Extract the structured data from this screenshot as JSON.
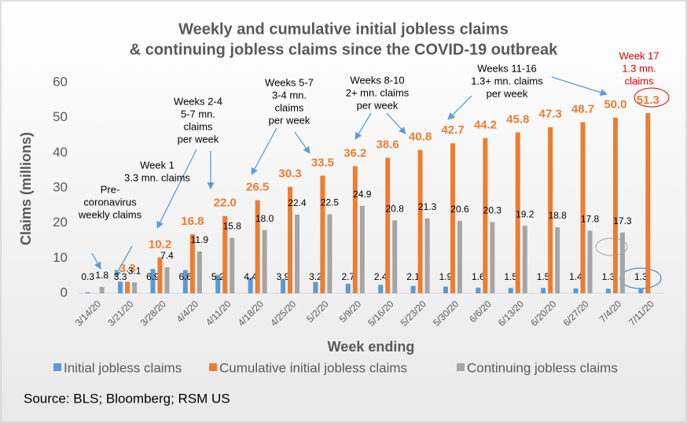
{
  "chart_data": {
    "type": "bar",
    "title": [
      "Weekly and cumulative initial jobless claims",
      "& continuing jobless claims since the COVID-19 outbreak"
    ],
    "y_label": "Claims (millions)",
    "x_label": "Week ending",
    "source": "Source: BLS; Bloomberg; RSM US",
    "categories": [
      "3/14/20",
      "3/21/20",
      "3/28/20",
      "4/4/20",
      "4/11/20",
      "4/18/20",
      "4/25/20",
      "5/2/20",
      "5/9/20",
      "5/16/20",
      "5/23/20",
      "5/30/20",
      "6/6/20",
      "6/13/20",
      "6/20/20",
      "6/27/20",
      "7/4/20",
      "7/11/20"
    ],
    "series": [
      {
        "name": "Initial jobless claims",
        "color": "#5b9bd5",
        "values": [
          0.3,
          3.3,
          6.9,
          6.6,
          5.2,
          4.4,
          3.9,
          3.2,
          2.7,
          2.4,
          2.1,
          1.9,
          1.6,
          1.5,
          1.5,
          1.4,
          1.3,
          1.3
        ],
        "value_labels": [
          "0.3",
          "3.3",
          "6.9",
          "6.6",
          "5.2",
          "4.4",
          "3.9",
          "3.2",
          "2.7",
          "2.4",
          "2.1",
          "1.9",
          "1.6",
          "1.5",
          "1.5",
          "1.4",
          "1.3",
          "1.3"
        ]
      },
      {
        "name": "Cumulative initial jobless claims",
        "color": "#ed7d31",
        "values": [
          null,
          3.3,
          10.2,
          16.8,
          22.0,
          26.5,
          30.3,
          33.5,
          36.2,
          38.6,
          40.8,
          42.7,
          44.2,
          45.8,
          47.3,
          48.7,
          50.0,
          51.3
        ],
        "value_labels": [
          null,
          "3.3",
          "10.2",
          "16.8",
          "22.0",
          "26.5",
          "30.3",
          "33.5",
          "36.2",
          "38.6",
          "40.8",
          "42.7",
          "44.2",
          "45.8",
          "47.3",
          "48.7",
          "50.0",
          "51.3"
        ]
      },
      {
        "name": "Continuing jobless claims",
        "color": "#a5a5a5",
        "values": [
          1.8,
          3.1,
          7.4,
          11.9,
          15.8,
          18.0,
          22.4,
          22.5,
          24.9,
          20.8,
          21.3,
          20.6,
          20.3,
          19.2,
          18.8,
          17.8,
          17.3,
          null
        ],
        "value_labels": [
          "1.8",
          "3.1",
          "7.4",
          "11.9",
          "15.8",
          "18.0",
          "22.4",
          "22.5",
          "24.9",
          "20.8",
          "21.3",
          "20.6",
          "20.3",
          "19.2",
          "18.8",
          "17.8",
          "17.3",
          null
        ]
      }
    ],
    "ylim": [
      0,
      60
    ],
    "yticks": [
      0,
      10,
      20,
      30,
      40,
      50,
      60
    ],
    "annotations": [
      {
        "lines": [
          "Pre-",
          "coronavirus",
          "weekly claims"
        ]
      },
      {
        "lines": [
          "Week 1",
          "3.3 mn. claims"
        ]
      },
      {
        "lines": [
          "Weeks 2-4",
          "5-7 mn.",
          "claims",
          "per week"
        ]
      },
      {
        "lines": [
          "Weeks 5-7",
          "3-4 mn.",
          "claims",
          "per week"
        ]
      },
      {
        "lines": [
          "Weeks 8-10",
          "2+ mn. claims",
          "per week"
        ]
      },
      {
        "lines": [
          "Weeks 11-16",
          "1.3+ mn. claims",
          "per week"
        ]
      },
      {
        "lines": [
          "Week 17",
          "1.3 mn.",
          "claims"
        ],
        "color": "#e00000"
      }
    ]
  }
}
